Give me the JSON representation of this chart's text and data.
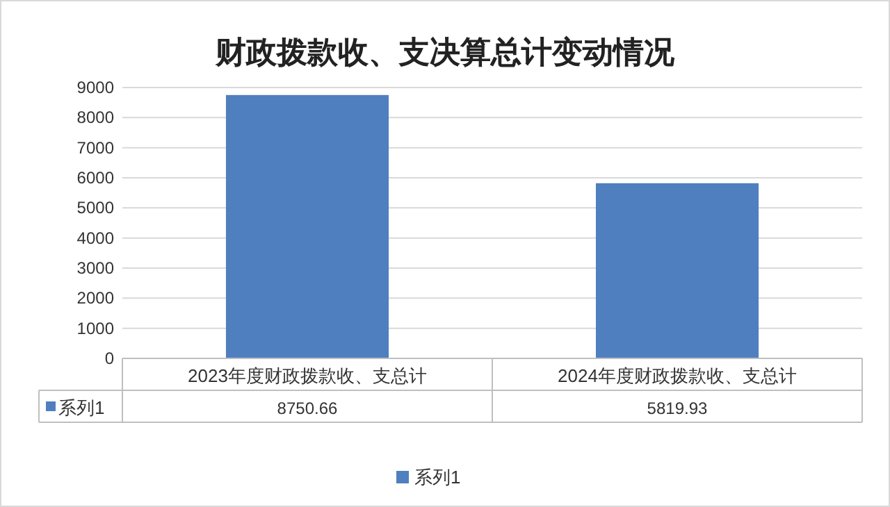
{
  "chart_data": {
    "type": "bar",
    "title": "财政拨款收、支决算总计变动情况",
    "categories": [
      "2023年度财政拨款收、支总计",
      "2024年度财政拨款收、支总计"
    ],
    "series": [
      {
        "name": "系列1",
        "color": "#4f7fbf",
        "values": [
          8750.66,
          5819.93
        ]
      }
    ],
    "ylim": [
      0,
      9000
    ],
    "yticks": [
      0,
      1000,
      2000,
      3000,
      4000,
      5000,
      6000,
      7000,
      8000,
      9000
    ],
    "grid": "y",
    "data_labels": true,
    "legend": "bottom"
  }
}
